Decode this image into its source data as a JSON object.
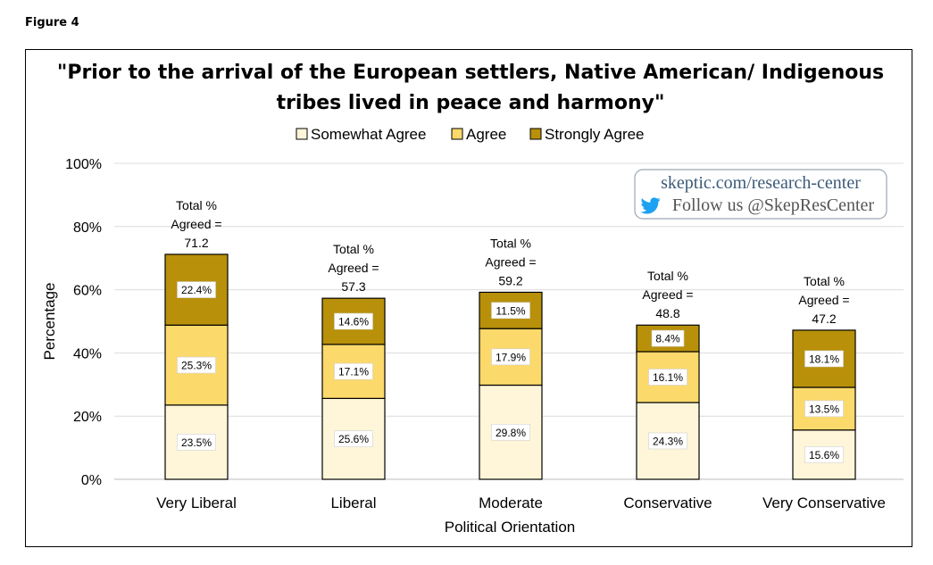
{
  "figure_label": "Figure 4",
  "watermark": {
    "site": "skeptic.com/research-center",
    "follow": "Follow us @SkepResCenter",
    "icon": "twitter-bird-icon",
    "color_site": "#3c5a78",
    "color_bird": "#1da1f2"
  },
  "chart_data": {
    "type": "bar",
    "stacked": true,
    "title_line1": "\"Prior to the arrival of the European settlers, Native American/ Indigenous",
    "title_line2": "tribes lived in peace and harmony\"",
    "xlabel": "Political Orientation",
    "ylabel": "Percentage",
    "ylim": [
      0,
      100
    ],
    "yticks": [
      "0%",
      "20%",
      "40%",
      "60%",
      "80%",
      "100%"
    ],
    "grid": true,
    "legend_position": "top-center",
    "categories": [
      "Very Liberal",
      "Liberal",
      "Moderate",
      "Conservative",
      "Very Conservative"
    ],
    "series": [
      {
        "name": "Somewhat Agree",
        "color": "#fff6d9",
        "values": [
          23.5,
          25.6,
          29.8,
          24.3,
          15.6
        ],
        "labels": [
          "23.5%",
          "25.6%",
          "29.8%",
          "24.3%",
          "15.6%"
        ]
      },
      {
        "name": "Agree",
        "color": "#fcd96b",
        "values": [
          25.3,
          17.1,
          17.9,
          16.1,
          13.5
        ],
        "labels": [
          "25.3%",
          "17.1%",
          "17.9%",
          "16.1%",
          "13.5%"
        ]
      },
      {
        "name": "Strongly Agree",
        "color": "#b8900a",
        "values": [
          22.4,
          14.6,
          11.5,
          8.4,
          18.1
        ],
        "labels": [
          "22.4%",
          "14.6%",
          "11.5%",
          "8.4%",
          "18.1%"
        ]
      }
    ],
    "totals_prefix": [
      "Total %",
      "Agreed ="
    ],
    "totals": [
      "71.2",
      "57.3",
      "59.2",
      "48.8",
      "47.2"
    ],
    "total_values": [
      71.2,
      57.3,
      59.2,
      48.8,
      47.2
    ]
  }
}
